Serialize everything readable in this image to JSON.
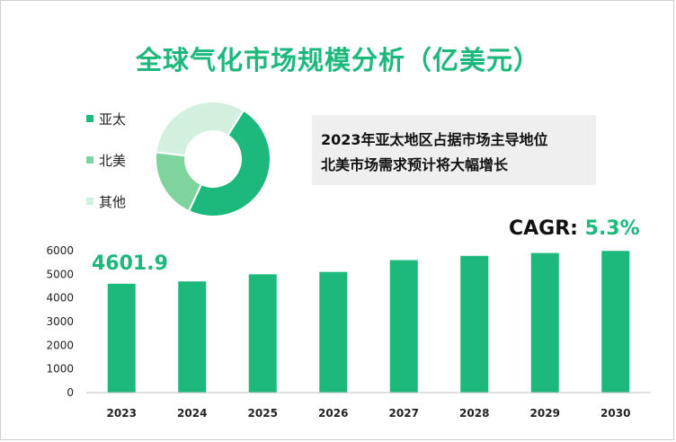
{
  "header": {
    "title": "全球气化市场规模分析（亿美元）"
  },
  "legend": [
    {
      "label": "亚太",
      "color": "#1db97c"
    },
    {
      "label": "北美",
      "color": "#7ed49c"
    },
    {
      "label": "其他",
      "color": "#d3f0df"
    }
  ],
  "info_box": {
    "line1": "2023年亚太地区占据市场主导地位",
    "line2": "北美市场需求预计将大幅增长"
  },
  "cagr": {
    "label": "CAGR: ",
    "value": "5.3%"
  },
  "first_bar_label": "4601.9",
  "chart_data": [
    {
      "type": "pie",
      "donut": true,
      "labels": [
        "亚太",
        "北美",
        "其他"
      ],
      "values": [
        48,
        20,
        32
      ],
      "colors": [
        "#1db97c",
        "#7ed49c",
        "#d3f0df"
      ]
    },
    {
      "type": "bar",
      "categories": [
        "2023",
        "2024",
        "2025",
        "2026",
        "2027",
        "2028",
        "2029",
        "2030"
      ],
      "values": [
        4601.9,
        4700,
        5000,
        5100,
        5600,
        5780,
        5900,
        5990
      ],
      "ylim": [
        0,
        6000
      ],
      "yticks": [
        "0",
        "1000",
        "2000",
        "3000",
        "4000",
        "5000",
        "6000"
      ],
      "bar_color": "#1db97c",
      "grid": false
    }
  ]
}
